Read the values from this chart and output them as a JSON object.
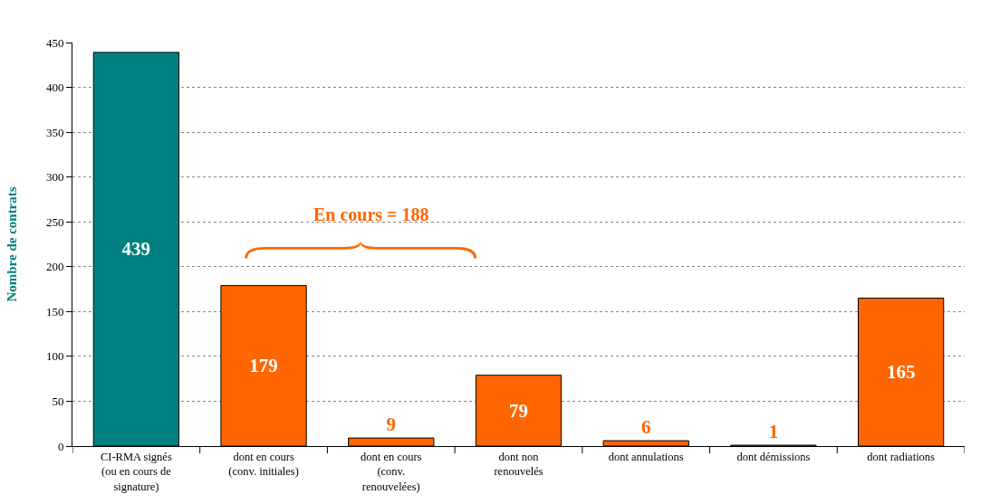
{
  "chart_data": {
    "type": "bar",
    "ylabel": "Nombre de contrats",
    "categories": [
      "CI-RMA signés (ou en cours de signature)",
      "dont en cours (conv. initiales)",
      "dont en cours (conv. renouvelées)",
      "dont non renouvelés",
      "dont annulations",
      "dont démissions",
      "dont radiations"
    ],
    "values": [
      439,
      179,
      9,
      79,
      6,
      1,
      165
    ],
    "colors": [
      "#008080",
      "#ff6600",
      "#ff6600",
      "#ff6600",
      "#ff6600",
      "#ff6600",
      "#ff6600"
    ],
    "ylim": [
      0,
      450
    ],
    "yticks": [
      0,
      50,
      100,
      150,
      200,
      250,
      300,
      350,
      400,
      450
    ],
    "grid": "y",
    "data_labels": true,
    "annotations": [
      "En cours = 188"
    ]
  }
}
